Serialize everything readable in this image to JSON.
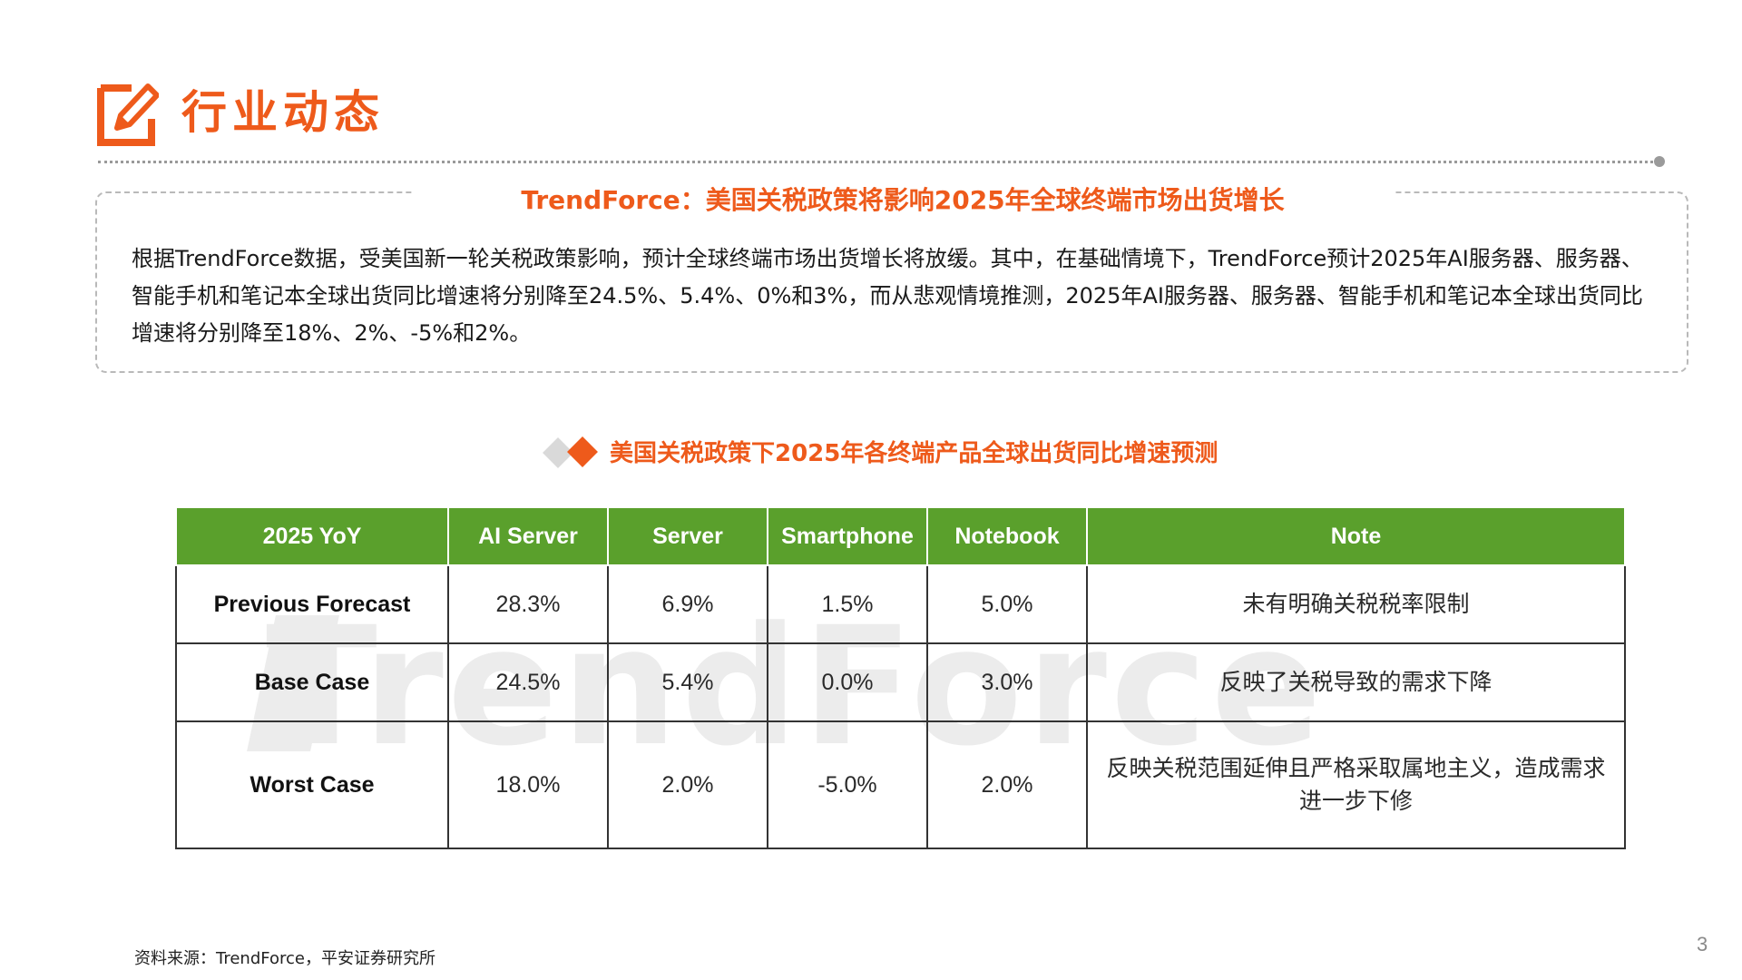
{
  "header": {
    "icon": "pencil-in-square-icon",
    "title": "行业动态",
    "accent_color": "#ee5a1b"
  },
  "summary": {
    "heading": "TrendForce：美国关税政策将影响2025年全球终端市场出货增长",
    "body": "根据TrendForce数据，受美国新一轮关税政策影响，预计全球终端市场出货增长将放缓。其中，在基础情境下，TrendForce预计2025年AI服务器、服务器、智能手机和笔记本全球出货同比增速将分别降至24.5%、5.4%、0%和3%，而从悲观情境推测，2025年AI服务器、服务器、智能手机和笔记本全球出货同比增速将分别降至18%、2%、-5%和2%。"
  },
  "table_section": {
    "title": "美国关税政策下2025年各终端产品全球出货同比增速预测",
    "watermark": "TrendForce",
    "header_color": "#5aa02c",
    "columns": [
      "2025 YoY",
      "AI Server",
      "Server",
      "Smartphone",
      "Notebook",
      "Note"
    ],
    "rows": [
      [
        "Previous Forecast",
        "28.3%",
        "6.9%",
        "1.5%",
        "5.0%",
        "未有明确关税税率限制"
      ],
      [
        "Base Case",
        "24.5%",
        "5.4%",
        "0.0%",
        "3.0%",
        "反映了关税导致的需求下降"
      ],
      [
        "Worst Case",
        "18.0%",
        "2.0%",
        "-5.0%",
        "2.0%",
        "反映关税范围延伸且严格采取属地主义，造成需求进一步下修"
      ]
    ]
  },
  "footer": {
    "source": "资料来源：TrendForce，平安证券研究所",
    "page_number": "3"
  }
}
